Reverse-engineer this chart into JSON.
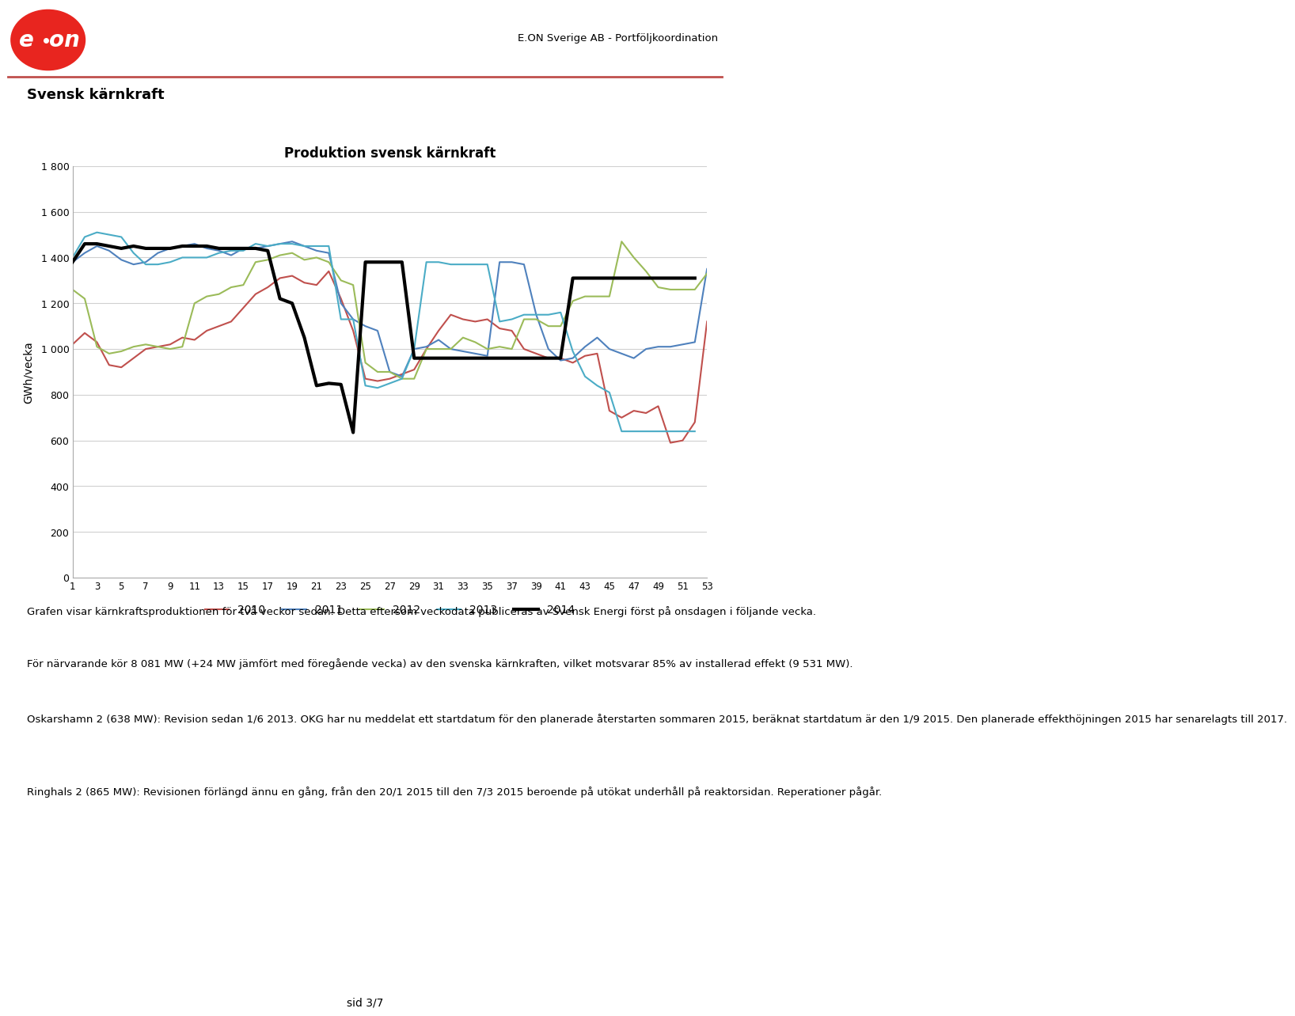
{
  "title_chart": "Produktion svensk kärnkraft",
  "page_title": "Svensk kärnkraft",
  "header_right": "E.ON Sverige AB - Portföljkoordination",
  "ylabel": "GWh/vecka",
  "ylim": [
    0,
    1800
  ],
  "yticks": [
    0,
    200,
    400,
    600,
    800,
    1000,
    1200,
    1400,
    1600,
    1800
  ],
  "xticks": [
    1,
    3,
    5,
    7,
    9,
    11,
    13,
    15,
    17,
    19,
    21,
    23,
    25,
    27,
    29,
    31,
    33,
    35,
    37,
    39,
    41,
    43,
    45,
    47,
    49,
    51,
    53
  ],
  "xlim": [
    1,
    53
  ],
  "legend_labels": [
    "2010",
    "2011",
    "2012",
    "2013",
    "2014"
  ],
  "legend_colors": [
    "#c0504d",
    "#4f81bd",
    "#9bbb59",
    "#4bacc6",
    "#000000"
  ],
  "legend_linewidths": [
    1.5,
    1.5,
    1.5,
    1.5,
    3.0
  ],
  "line_colors": [
    "#c0504d",
    "#4f81bd",
    "#9bbb59",
    "#4bacc6",
    "#000000"
  ],
  "line_widths": [
    1.5,
    1.5,
    1.5,
    1.5,
    3.0
  ],
  "data_2010": [
    1020,
    1070,
    1030,
    930,
    920,
    960,
    1000,
    1010,
    1020,
    1050,
    1040,
    1080,
    1100,
    1120,
    1180,
    1240,
    1270,
    1310,
    1320,
    1290,
    1280,
    1340,
    1220,
    1080,
    870,
    860,
    870,
    890,
    910,
    1000,
    1080,
    1150,
    1130,
    1120,
    1130,
    1090,
    1080,
    1000,
    980,
    960,
    960,
    940,
    970,
    980,
    730,
    700,
    730,
    720,
    750,
    590,
    600,
    680,
    1120
  ],
  "data_2011": [
    1380,
    1420,
    1450,
    1430,
    1390,
    1370,
    1380,
    1420,
    1440,
    1450,
    1460,
    1440,
    1430,
    1410,
    1440,
    1440,
    1450,
    1460,
    1470,
    1450,
    1430,
    1420,
    1200,
    1130,
    1100,
    1080,
    900,
    880,
    1000,
    1010,
    1040,
    1000,
    990,
    980,
    970,
    1380,
    1380,
    1370,
    1150,
    1000,
    950,
    960,
    1010,
    1050,
    1000,
    980,
    960,
    1000,
    1010,
    1010,
    1020,
    1030,
    1350
  ],
  "data_2012": [
    1260,
    1220,
    1010,
    980,
    990,
    1010,
    1020,
    1010,
    1000,
    1010,
    1200,
    1230,
    1240,
    1270,
    1280,
    1380,
    1390,
    1410,
    1420,
    1390,
    1400,
    1380,
    1300,
    1280,
    940,
    900,
    900,
    870,
    870,
    1000,
    1000,
    1000,
    1050,
    1030,
    1000,
    1010,
    1000,
    1130,
    1130,
    1100,
    1100,
    1210,
    1230,
    1230,
    1230,
    1470,
    1400,
    1340,
    1270,
    1260,
    1260,
    1260,
    1330
  ],
  "data_2013": [
    1400,
    1490,
    1510,
    1500,
    1490,
    1420,
    1370,
    1370,
    1380,
    1400,
    1400,
    1400,
    1420,
    1430,
    1430,
    1460,
    1450,
    1460,
    1460,
    1450,
    1450,
    1450,
    1130,
    1130,
    840,
    830,
    850,
    870,
    1000,
    1380,
    1380,
    1370,
    1370,
    1370,
    1370,
    1120,
    1130,
    1150,
    1150,
    1150,
    1160,
    990,
    880,
    840,
    810,
    640,
    640,
    640,
    640,
    640,
    640,
    640,
    null
  ],
  "data_2014": [
    1380,
    1460,
    1460,
    1450,
    1440,
    1450,
    1440,
    1440,
    1440,
    1450,
    1450,
    1450,
    1440,
    1440,
    1440,
    1440,
    1430,
    1220,
    1200,
    1050,
    840,
    850,
    845,
    635,
    1380,
    1380,
    1380,
    1380,
    960,
    960,
    960,
    960,
    960,
    960,
    960,
    960,
    960,
    960,
    960,
    960,
    960,
    1310,
    1310,
    1310,
    1310,
    1310,
    1310,
    1310,
    1310,
    1310,
    1310,
    1310,
    null
  ],
  "text_body_1": "Grafen visar kärnkraftsproduktionen för två veckor sedan. Detta eftersom veckodata publiceras av Svensk Energi först på onsdagen i följande vecka.",
  "text_body_2": "För närvarande kör 8 081 MW (+24 MW jämfört med föregående vecka) av den svenska kärnkraften, vilket motsvarar 85% av installerad effekt (9 531 MW).",
  "text_body_3": "Oskarshamn 2 (638 MW): Revision sedan 1/6 2013. OKG har nu meddelat ett startdatum för den planerade återstarten sommaren 2015, beräknat startdatum är den 1/9 2015. Den planerade effekthöjningen 2015 har senarelagts till 2017.",
  "text_body_4": "Ringhals 2 (865 MW): Revisionen förlängd ännu en gång, från den 20/1 2015 till den 7/3 2015 beroende på utökat underhåll på reaktorsidan. Reperationer pågår.",
  "footer_text": "sid 3/7",
  "background_color": "#ffffff",
  "red_line_color": "#c0504d",
  "logo_color": "#e8251f"
}
